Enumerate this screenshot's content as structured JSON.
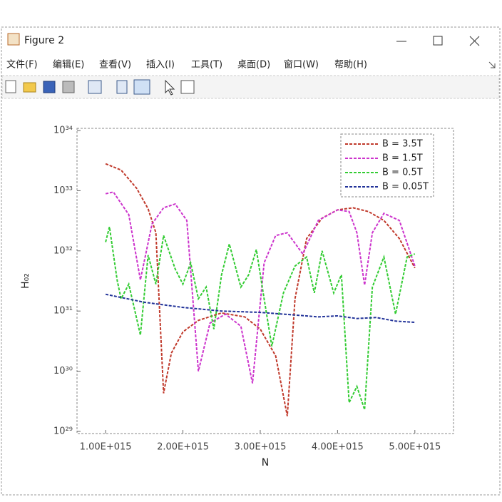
{
  "window": {
    "title": "Figure 2",
    "menu": [
      "文件(F)",
      "编辑(E)",
      "查看(V)",
      "插入(I)",
      "工具(T)",
      "桌面(D)",
      "窗口(W)",
      "帮助(H)"
    ]
  },
  "chart_data": {
    "type": "line",
    "xlabel": "N",
    "ylabel": "H₀₂",
    "xlim": [
      630000000000000.0,
      5500000000000000.0
    ],
    "xticks": [
      {
        "value": 1000000000000000.0,
        "label": "1.00E+015"
      },
      {
        "value": 2000000000000000.0,
        "label": "2.00E+015"
      },
      {
        "value": 3000000000000000.0,
        "label": "3.00E+015"
      },
      {
        "value": 4000000000000000.0,
        "label": "4.00E+015"
      },
      {
        "value": 5000000000000000.0,
        "label": "5.00E+015"
      }
    ],
    "ylim": [
      1e+29,
      1e+34
    ],
    "yscale": "log",
    "yticks": [
      {
        "value": 1e+29,
        "label": "10²⁹"
      },
      {
        "value": 1e+30,
        "label": "10³⁰"
      },
      {
        "value": 1e+31,
        "label": "10³¹"
      },
      {
        "value": 1e+32,
        "label": "10³²"
      },
      {
        "value": 1e+33,
        "label": "10³³"
      },
      {
        "value": 1e+34,
        "label": "10³⁴"
      }
    ],
    "legend": "upper right",
    "series": [
      {
        "name": "B = 3.5T",
        "color": "#c0392b",
        "x": [
          1000000000000000.0,
          1200000000000000.0,
          1400000000000000.0,
          1550000000000000.0,
          1650000000000000.0,
          1750000000000000.0,
          1850000000000000.0,
          2000000000000000.0,
          2200000000000000.0,
          2500000000000000.0,
          2800000000000000.0,
          3000000000000000.0,
          3200000000000000.0,
          3350000000000000.0,
          3450000000000000.0,
          3600000000000000.0,
          3800000000000000.0,
          4000000000000000.0,
          4200000000000000.0,
          4400000000000000.0,
          4600000000000000.0,
          4800000000000000.0,
          5000000000000000.0
        ],
        "values": [
          2.8e+33,
          2.2e+33,
          1.1e+33,
          5e+32,
          2e+32,
          4.3e+29,
          2e+30,
          4.5e+30,
          7e+30,
          9.3e+30,
          8e+30,
          5e+30,
          1.8e+30,
          1.8e+29,
          1.6e+31,
          1.6e+32,
          3.5e+32,
          4.8e+32,
          5.2e+32,
          4.5e+32,
          3.2e+32,
          1.6e+32,
          5.2e+31
        ]
      },
      {
        "name": "B = 1.5T",
        "color": "#cc33cc",
        "x": [
          1000000000000000.0,
          1100000000000000.0,
          1300000000000000.0,
          1450000000000000.0,
          1600000000000000.0,
          1750000000000000.0,
          1900000000000000.0,
          2050000000000000.0,
          2200000000000000.0,
          2350000000000000.0,
          2550000000000000.0,
          2750000000000000.0,
          2900000000000000.0,
          3050000000000000.0,
          3200000000000000.0,
          3350000000000000.0,
          3550000000000000.0,
          3750000000000000.0,
          4000000000000000.0,
          4150000000000000.0,
          4250000000000000.0,
          4350000000000000.0,
          4450000000000000.0,
          4600000000000000.0,
          4800000000000000.0,
          5000000000000000.0
        ],
        "values": [
          8.9e+32,
          9.5e+32,
          4e+32,
          3.3e+31,
          2.8e+32,
          5.2e+32,
          6e+32,
          3.2e+32,
          1e+30,
          6.3e+30,
          8.9e+30,
          5.6e+30,
          6.3e+29,
          6.3e+31,
          1.8e+32,
          2e+32,
          8.9e+31,
          3.2e+32,
          4.8e+32,
          4.5e+32,
          2e+32,
          2.7e+31,
          2e+32,
          4.2e+32,
          3.2e+32,
          5.6e+31
        ]
      },
      {
        "name": "B = 0.5T",
        "color": "#33cc33",
        "x": [
          1000000000000000.0,
          1050000000000000.0,
          1150000000000000.0,
          1200000000000000.0,
          1300000000000000.0,
          1450000000000000.0,
          1550000000000000.0,
          1650000000000000.0,
          1750000000000000.0,
          1900000000000000.0,
          2000000000000000.0,
          2100000000000000.0,
          2200000000000000.0,
          2300000000000000.0,
          2400000000000000.0,
          2500000000000000.0,
          2600000000000000.0,
          2750000000000000.0,
          2850000000000000.0,
          2950000000000000.0,
          3050000000000000.0,
          3150000000000000.0,
          3300000000000000.0,
          3450000000000000.0,
          3600000000000000.0,
          3700000000000000.0,
          3800000000000000.0,
          3950000000000000.0,
          4050000000000000.0,
          4150000000000000.0,
          4250000000000000.0,
          4350000000000000.0,
          4450000000000000.0,
          4600000000000000.0,
          4750000000000000.0,
          4900000000000000.0,
          5000000000000000.0
        ],
        "values": [
          1.4e+32,
          2.5e+32,
          3.2e+31,
          1.6e+31,
          2.8e+31,
          4e+30,
          8.5e+31,
          2.8e+31,
          1.8e+32,
          5e+31,
          2.8e+31,
          6.3e+31,
          1.6e+31,
          2.5e+31,
          5e+30,
          4e+31,
          1.3e+32,
          2.5e+31,
          4e+31,
          1.05e+32,
          1.6e+31,
          2.6e+30,
          2e+31,
          5.6e+31,
          7.9e+31,
          2e+31,
          1e+32,
          2e+31,
          4e+31,
          3e+29,
          5.6e+29,
          2.3e+29,
          2.5e+31,
          7.9e+31,
          8.9e+30,
          7.9e+31,
          8.9e+31
        ]
      },
      {
        "name": "B = 0.05T",
        "color": "#223399",
        "x": [
          1000000000000000.0,
          1500000000000000.0,
          2000000000000000.0,
          2500000000000000.0,
          3000000000000000.0,
          3500000000000000.0,
          3750000000000000.0,
          4000000000000000.0,
          4250000000000000.0,
          4500000000000000.0,
          4750000000000000.0,
          5000000000000000.0
        ],
        "values": [
          1.9e+31,
          1.4e+31,
          1.15e+31,
          1e+31,
          9.5e+30,
          8.5e+30,
          8e+30,
          8.3e+30,
          7.5e+30,
          7.8e+30,
          6.8e+30,
          6.5e+30
        ]
      }
    ]
  }
}
